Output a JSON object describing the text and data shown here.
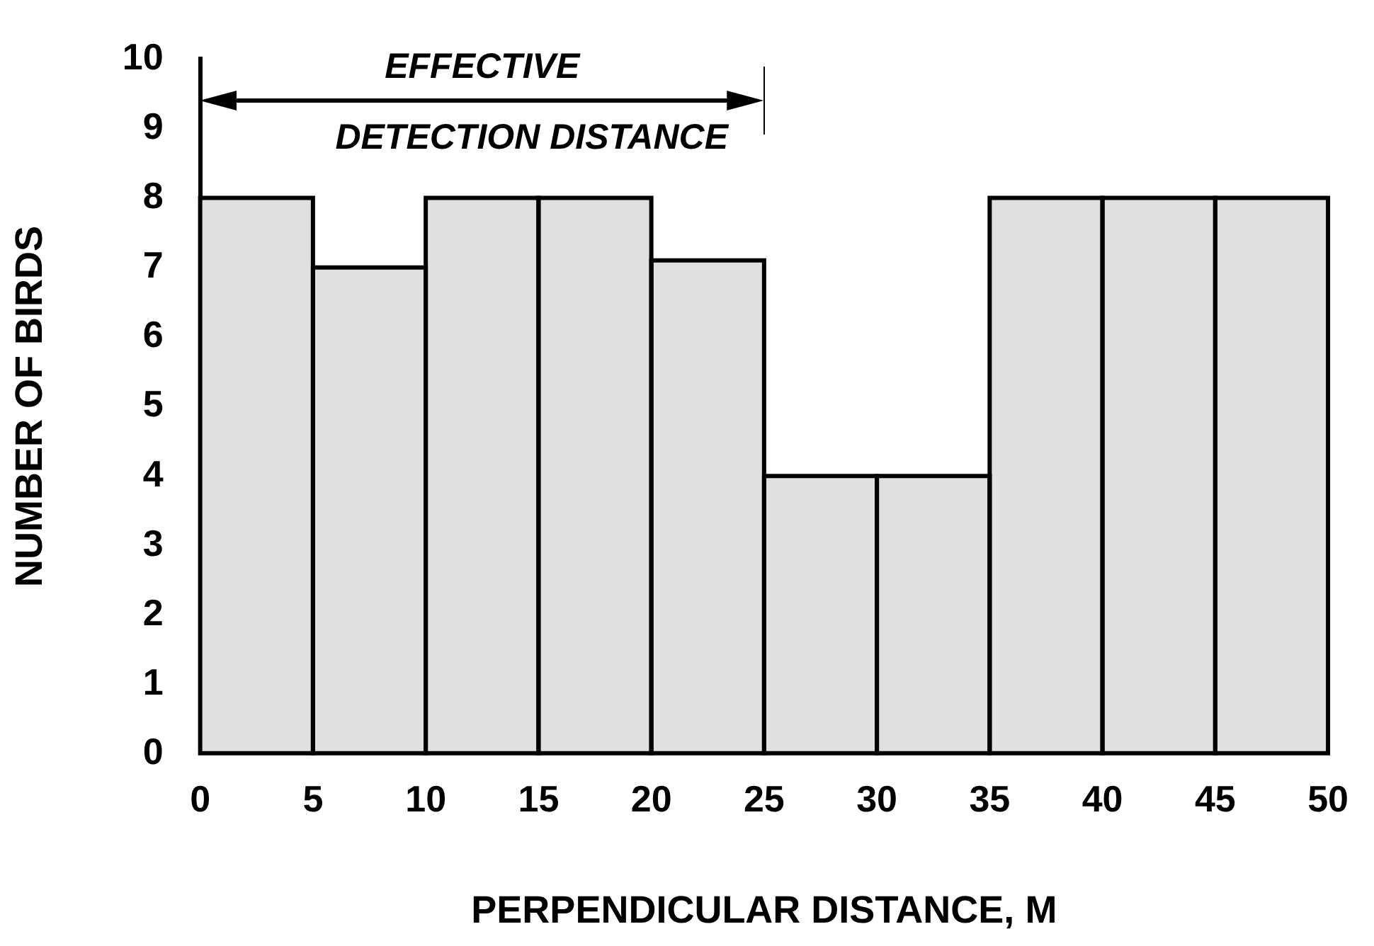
{
  "chart_data": {
    "type": "histogram",
    "xlabel": "PERPENDICULAR DISTANCE, M",
    "ylabel": "NUMBER OF BIRDS",
    "bins": [
      0,
      5,
      10,
      15,
      20,
      25,
      30,
      35,
      40,
      45,
      50
    ],
    "values": [
      8,
      7,
      8,
      8,
      7.1,
      4,
      4,
      8,
      8,
      8
    ],
    "color": "#e0e0e0",
    "xlim": [
      0,
      50
    ],
    "xticks": [
      0,
      5,
      10,
      15,
      20,
      25,
      30,
      35,
      40,
      45,
      50
    ],
    "ylim": [
      0,
      10
    ],
    "yticks": [
      0,
      1,
      2,
      3,
      4,
      5,
      6,
      7,
      8,
      9,
      10
    ],
    "ref_lines": [
      {
        "axis": "x",
        "value": 25,
        "label": "EFFECTIVE DETECTION DISTANCE"
      }
    ],
    "grid": false,
    "legend": false
  }
}
